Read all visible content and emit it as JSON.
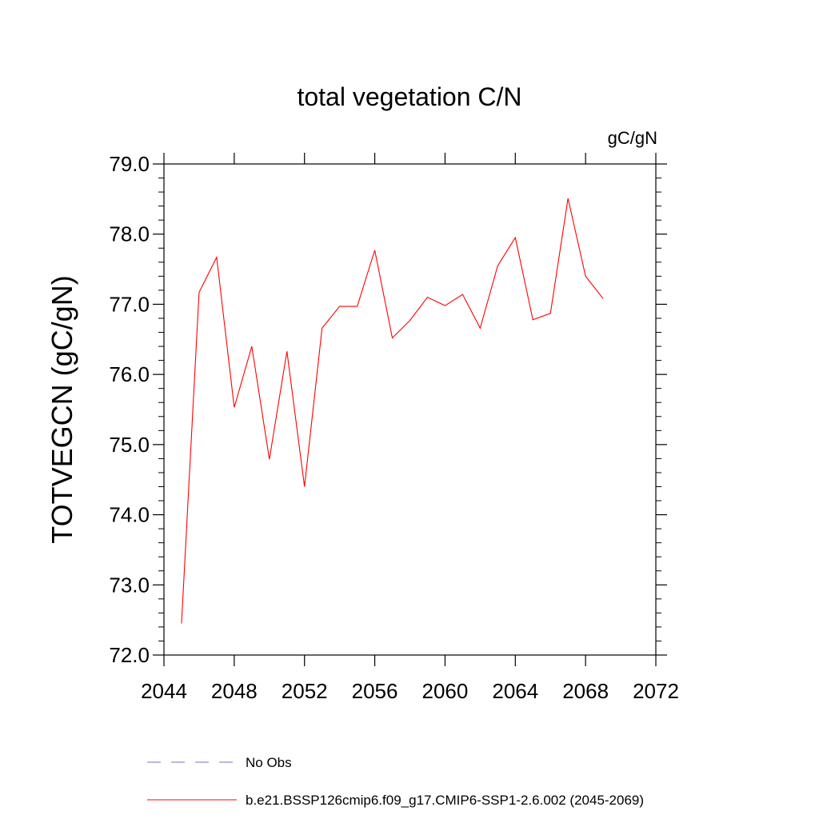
{
  "chart_data": {
    "type": "line",
    "title": "total vegetation C/N",
    "units_label": "gC/gN",
    "ylabel": "TOTVEGCN  (gC/gN)",
    "xlabel": "",
    "xlim": [
      2044,
      2072
    ],
    "ylim": [
      72.0,
      79.0
    ],
    "xticks": [
      2044,
      2048,
      2052,
      2056,
      2060,
      2064,
      2068,
      2072
    ],
    "yticks": [
      "72.0",
      "73.0",
      "74.0",
      "75.0",
      "76.0",
      "77.0",
      "78.0",
      "79.0"
    ],
    "grid": false,
    "series": [
      {
        "name": "b.e21.BSSP126cmip6.f09_g17.CMIP6-SSP1-2.6.002 (2045-2069)",
        "color": "#ff0000",
        "style": "solid",
        "x": [
          2045,
          2046,
          2047,
          2048,
          2049,
          2050,
          2051,
          2052,
          2053,
          2054,
          2055,
          2056,
          2057,
          2058,
          2059,
          2060,
          2061,
          2062,
          2063,
          2064,
          2065,
          2066,
          2067,
          2068,
          2069
        ],
        "values": [
          72.45,
          77.17,
          77.67,
          75.53,
          76.4,
          74.79,
          76.33,
          74.4,
          76.66,
          76.97,
          76.97,
          77.77,
          76.52,
          76.77,
          77.1,
          76.98,
          77.14,
          76.66,
          77.55,
          77.95,
          76.78,
          76.87,
          78.51,
          77.4,
          77.08
        ]
      }
    ],
    "legend": [
      {
        "label": "No Obs",
        "color": "#7c6fb0",
        "style": "dashed"
      },
      {
        "label": "b.e21.BSSP126cmip6.f09_g17.CMIP6-SSP1-2.6.002 (2045-2069)",
        "color": "#ff0000",
        "style": "solid"
      }
    ],
    "legend_position": "bottom"
  }
}
